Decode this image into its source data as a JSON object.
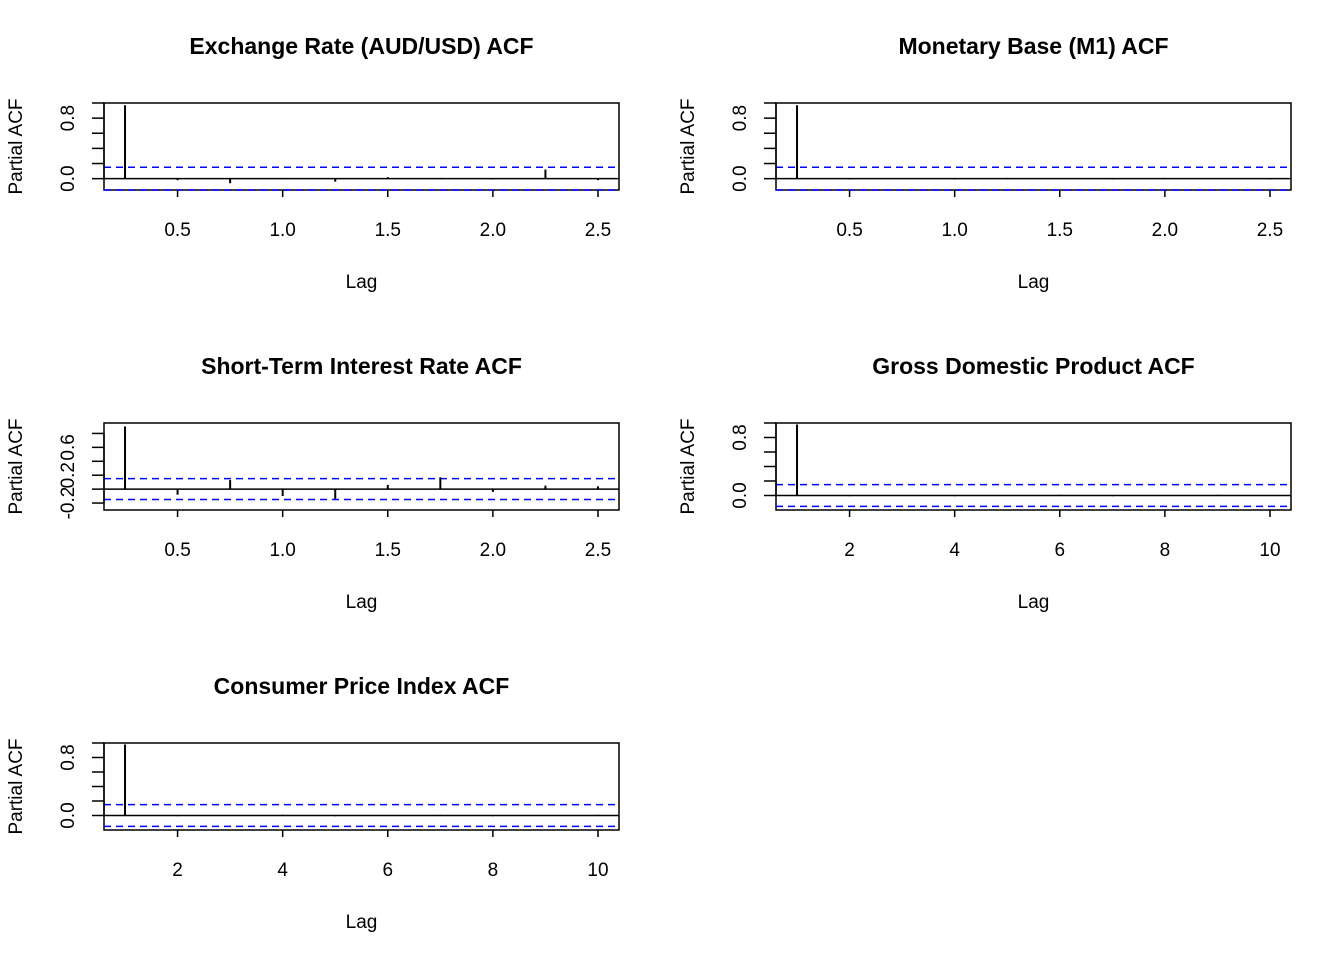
{
  "chart_data": [
    {
      "type": "bar",
      "title": "Exchange Rate (AUD/USD) ACF",
      "xlabel": "Lag",
      "ylabel": "Partial ACF",
      "xlim": [
        0.15,
        2.6
      ],
      "ylim": [
        -0.15,
        1.0
      ],
      "xticks": [
        0.5,
        1.0,
        1.5,
        2.0,
        2.5
      ],
      "xtick_labels": [
        "0.5",
        "1.0",
        "1.5",
        "2.0",
        "2.5"
      ],
      "yticks": [
        0.0,
        0.2,
        0.4,
        0.6,
        0.8,
        1.0
      ],
      "ytick_labels": [
        "0.0",
        "0.8"
      ],
      "ytick_label_values": [
        0.0,
        0.8
      ],
      "ci": 0.15,
      "lags": [
        0.25,
        0.5,
        0.75,
        1.0,
        1.25,
        1.5,
        1.75,
        2.0,
        2.25,
        2.5
      ],
      "values": [
        0.97,
        -0.02,
        -0.06,
        0.01,
        -0.04,
        0.02,
        0.01,
        -0.01,
        0.12,
        -0.02
      ],
      "grid": false
    },
    {
      "type": "bar",
      "title": "Monetary Base (M1) ACF",
      "xlabel": "Lag",
      "ylabel": "Partial ACF",
      "xlim": [
        0.15,
        2.6
      ],
      "ylim": [
        -0.15,
        1.0
      ],
      "xticks": [
        0.5,
        1.0,
        1.5,
        2.0,
        2.5
      ],
      "xtick_labels": [
        "0.5",
        "1.0",
        "1.5",
        "2.0",
        "2.5"
      ],
      "yticks": [
        0.0,
        0.2,
        0.4,
        0.6,
        0.8,
        1.0
      ],
      "ytick_labels": [
        "0.0",
        "0.8"
      ],
      "ytick_label_values": [
        0.0,
        0.8
      ],
      "ci": 0.15,
      "lags": [
        0.25,
        0.5,
        0.75,
        1.0,
        1.25,
        1.5,
        1.75,
        2.0,
        2.25,
        2.5
      ],
      "values": [
        0.97,
        -0.01,
        0.0,
        -0.01,
        0.01,
        0.0,
        -0.01,
        0.01,
        0.0,
        -0.01
      ],
      "grid": false
    },
    {
      "type": "bar",
      "title": "Short-Term Interest Rate ACF",
      "xlabel": "Lag",
      "ylabel": "Partial ACF",
      "xlim": [
        0.15,
        2.6
      ],
      "ylim": [
        -0.3,
        0.95
      ],
      "xticks": [
        0.5,
        1.0,
        1.5,
        2.0,
        2.5
      ],
      "xtick_labels": [
        "0.5",
        "1.0",
        "1.5",
        "2.0",
        "2.5"
      ],
      "yticks": [
        -0.2,
        0.0,
        0.2,
        0.4,
        0.6,
        0.8
      ],
      "ytick_labels": [
        "-0.2",
        "0.2",
        "0.6"
      ],
      "ytick_label_values": [
        -0.2,
        0.2,
        0.6
      ],
      "ci": 0.15,
      "lags": [
        0.25,
        0.5,
        0.75,
        1.0,
        1.25,
        1.5,
        1.75,
        2.0,
        2.25,
        2.5
      ],
      "values": [
        0.9,
        -0.08,
        0.13,
        -0.1,
        -0.14,
        0.06,
        0.17,
        -0.04,
        0.05,
        0.04
      ],
      "grid": false
    },
    {
      "type": "bar",
      "title": "Gross Domestic Product ACF",
      "xlabel": "Lag",
      "ylabel": "Partial ACF",
      "xlim": [
        0.6,
        10.4
      ],
      "ylim": [
        -0.2,
        1.0
      ],
      "xticks": [
        2,
        4,
        6,
        8,
        10
      ],
      "xtick_labels": [
        "2",
        "4",
        "6",
        "8",
        "10"
      ],
      "yticks": [
        0.0,
        0.2,
        0.4,
        0.6,
        0.8,
        1.0
      ],
      "ytick_labels": [
        "0.0",
        "0.8"
      ],
      "ytick_label_values": [
        0.0,
        0.8
      ],
      "ci": 0.15,
      "lags": [
        1,
        2,
        3,
        4,
        5,
        6,
        7,
        8,
        9,
        10
      ],
      "values": [
        0.98,
        -0.01,
        0.0,
        -0.01,
        0.0,
        0.01,
        -0.01,
        0.0,
        0.01,
        0.0
      ],
      "grid": false
    },
    {
      "type": "bar",
      "title": "Consumer Price Index ACF",
      "xlabel": "Lag",
      "ylabel": "Partial ACF",
      "xlim": [
        0.6,
        10.4
      ],
      "ylim": [
        -0.2,
        1.0
      ],
      "xticks": [
        2,
        4,
        6,
        8,
        10
      ],
      "xtick_labels": [
        "2",
        "4",
        "6",
        "8",
        "10"
      ],
      "yticks": [
        0.0,
        0.2,
        0.4,
        0.6,
        0.8,
        1.0
      ],
      "ytick_labels": [
        "0.0",
        "0.8"
      ],
      "ytick_label_values": [
        0.0,
        0.8
      ],
      "ci": 0.15,
      "lags": [
        1,
        2,
        3,
        4,
        5,
        6,
        7,
        8,
        9,
        10
      ],
      "values": [
        0.98,
        -0.01,
        0.0,
        0.01,
        -0.01,
        0.0,
        0.01,
        -0.01,
        0.0,
        0.01
      ],
      "grid": false
    }
  ],
  "colors": {
    "bars": "#000000",
    "ci_lines": "#0000ff",
    "frame": "#000000",
    "background": "#ffffff"
  }
}
